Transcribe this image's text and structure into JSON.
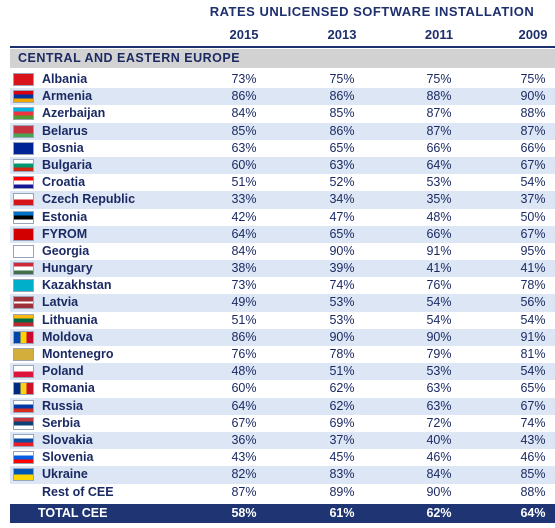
{
  "header": {
    "super_title": "RATES UNLICENSED SOFTWARE INSTALLATION",
    "region": "CENTRAL AND EASTERN EUROPE"
  },
  "chart_data": {
    "type": "table",
    "title": "RATES UNLICENSED SOFTWARE INSTALLATION",
    "columns": [
      "2015",
      "2013",
      "2011",
      "2009"
    ],
    "rows": [
      {
        "country": "Albania",
        "values": [
          "73%",
          "75%",
          "75%",
          "75%"
        ],
        "flag": {
          "type": "plain",
          "colors": [
            "#d8141a"
          ]
        }
      },
      {
        "country": "Armenia",
        "values": [
          "86%",
          "86%",
          "88%",
          "90%"
        ],
        "flag": {
          "type": "h",
          "colors": [
            "#d90012",
            "#0033a0",
            "#f2a800"
          ]
        }
      },
      {
        "country": "Azerbaijan",
        "values": [
          "84%",
          "85%",
          "87%",
          "88%"
        ],
        "flag": {
          "type": "h",
          "colors": [
            "#00b5e2",
            "#ef3340",
            "#509e2f"
          ]
        }
      },
      {
        "country": "Belarus",
        "values": [
          "85%",
          "86%",
          "87%",
          "87%"
        ],
        "flag": {
          "type": "h",
          "colors": [
            "#c8313e",
            "#c8313e",
            "#4aa657"
          ]
        }
      },
      {
        "country": "Bosnia",
        "values": [
          "63%",
          "65%",
          "66%",
          "66%"
        ],
        "flag": {
          "type": "plain",
          "colors": [
            "#002395"
          ]
        }
      },
      {
        "country": "Bulgaria",
        "values": [
          "60%",
          "63%",
          "64%",
          "67%"
        ],
        "flag": {
          "type": "h",
          "colors": [
            "#ffffff",
            "#00966e",
            "#d62612"
          ]
        }
      },
      {
        "country": "Croatia",
        "values": [
          "51%",
          "52%",
          "53%",
          "54%"
        ],
        "flag": {
          "type": "h",
          "colors": [
            "#ff0000",
            "#ffffff",
            "#171796"
          ]
        }
      },
      {
        "country": "Czech Republic",
        "values": [
          "33%",
          "34%",
          "35%",
          "37%"
        ],
        "flag": {
          "type": "h",
          "colors": [
            "#ffffff",
            "#d7141a"
          ]
        }
      },
      {
        "country": "Estonia",
        "values": [
          "42%",
          "47%",
          "48%",
          "50%"
        ],
        "flag": {
          "type": "h",
          "colors": [
            "#0072ce",
            "#000000",
            "#ffffff"
          ]
        }
      },
      {
        "country": "FYROM",
        "values": [
          "64%",
          "65%",
          "66%",
          "67%"
        ],
        "flag": {
          "type": "plain",
          "colors": [
            "#d20000"
          ]
        }
      },
      {
        "country": "Georgia",
        "values": [
          "84%",
          "90%",
          "91%",
          "95%"
        ],
        "flag": {
          "type": "plain",
          "colors": [
            "#ffffff"
          ]
        }
      },
      {
        "country": "Hungary",
        "values": [
          "38%",
          "39%",
          "41%",
          "41%"
        ],
        "flag": {
          "type": "h",
          "colors": [
            "#cd2a3e",
            "#ffffff",
            "#436f4d"
          ]
        }
      },
      {
        "country": "Kazakhstan",
        "values": [
          "73%",
          "74%",
          "76%",
          "78%"
        ],
        "flag": {
          "type": "plain",
          "colors": [
            "#00afca"
          ]
        }
      },
      {
        "country": "Latvia",
        "values": [
          "49%",
          "53%",
          "54%",
          "56%"
        ],
        "flag": {
          "type": "h",
          "colors": [
            "#9e3039",
            "#9e3039",
            "#ffffff",
            "#9e3039",
            "#9e3039"
          ]
        }
      },
      {
        "country": "Lithuania",
        "values": [
          "51%",
          "53%",
          "54%",
          "54%"
        ],
        "flag": {
          "type": "h",
          "colors": [
            "#fdb913",
            "#006a44",
            "#c1272d"
          ]
        }
      },
      {
        "country": "Moldova",
        "values": [
          "86%",
          "90%",
          "90%",
          "91%"
        ],
        "flag": {
          "type": "v",
          "colors": [
            "#0046ae",
            "#ffd200",
            "#cc092f"
          ]
        }
      },
      {
        "country": "Montenegro",
        "values": [
          "76%",
          "78%",
          "79%",
          "81%"
        ],
        "flag": {
          "type": "plain",
          "colors": [
            "#d3ae3b"
          ]
        }
      },
      {
        "country": "Poland",
        "values": [
          "48%",
          "51%",
          "53%",
          "54%"
        ],
        "flag": {
          "type": "h",
          "colors": [
            "#ffffff",
            "#dc143c"
          ]
        }
      },
      {
        "country": "Romania",
        "values": [
          "60%",
          "62%",
          "63%",
          "65%"
        ],
        "flag": {
          "type": "v",
          "colors": [
            "#002b7f",
            "#fcd116",
            "#ce1126"
          ]
        }
      },
      {
        "country": "Russia",
        "values": [
          "64%",
          "62%",
          "63%",
          "67%"
        ],
        "flag": {
          "type": "h",
          "colors": [
            "#ffffff",
            "#0039a6",
            "#d52b1e"
          ]
        }
      },
      {
        "country": "Serbia",
        "values": [
          "67%",
          "69%",
          "72%",
          "74%"
        ],
        "flag": {
          "type": "h",
          "colors": [
            "#c6363c",
            "#0c4076",
            "#ffffff"
          ]
        }
      },
      {
        "country": "Slovakia",
        "values": [
          "36%",
          "37%",
          "40%",
          "43%"
        ],
        "flag": {
          "type": "h",
          "colors": [
            "#ffffff",
            "#0b4ea2",
            "#ee1c25"
          ]
        }
      },
      {
        "country": "Slovenia",
        "values": [
          "43%",
          "45%",
          "46%",
          "46%"
        ],
        "flag": {
          "type": "h",
          "colors": [
            "#ffffff",
            "#005ce5",
            "#ff0000"
          ]
        }
      },
      {
        "country": "Ukraine",
        "values": [
          "82%",
          "83%",
          "84%",
          "85%"
        ],
        "flag": {
          "type": "h",
          "colors": [
            "#0057b7",
            "#ffd700"
          ]
        }
      },
      {
        "country": "Rest of CEE",
        "values": [
          "87%",
          "89%",
          "90%",
          "88%"
        ],
        "flag": null
      }
    ],
    "total": {
      "label": "TOTAL CEE",
      "values": [
        "58%",
        "61%",
        "62%",
        "64%"
      ]
    }
  },
  "colors": {
    "text": "#1b2a63",
    "region_band": "#d2d2d2",
    "alt_row": "#dce6f4",
    "total_band": "#1f3573"
  }
}
